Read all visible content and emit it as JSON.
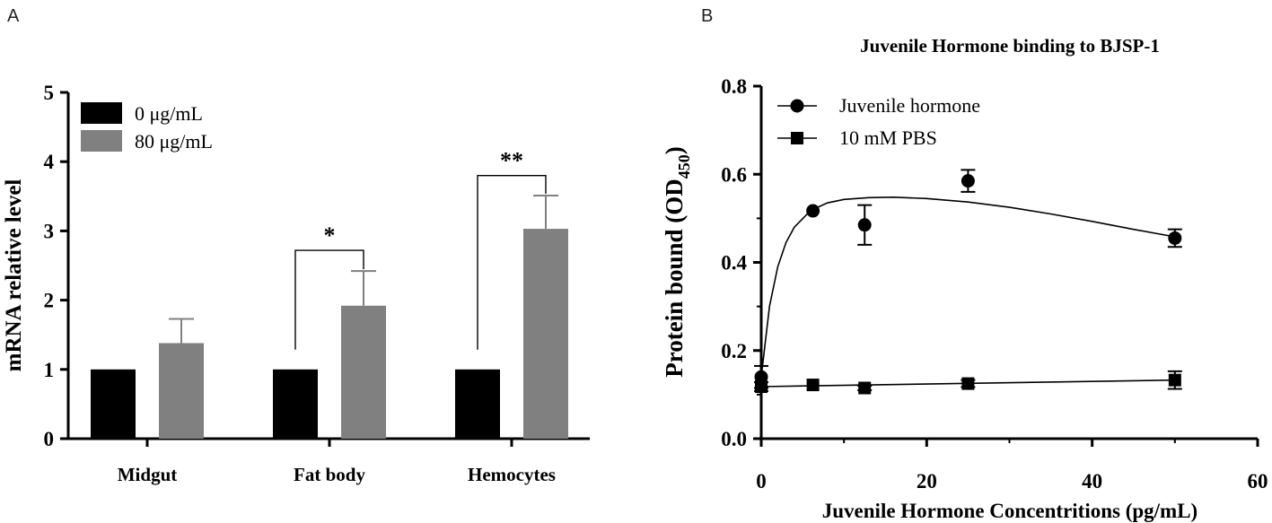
{
  "panels": {
    "a": {
      "letter": "A"
    },
    "b": {
      "letter": "B"
    }
  },
  "chart_data": [
    {
      "type": "bar",
      "title": "",
      "xlabel": "",
      "ylabel": "mRNA relative level",
      "ylim": [
        0,
        5
      ],
      "yticks": [
        "0",
        "1",
        "2",
        "3",
        "4",
        "5"
      ],
      "categories": [
        "Midgut",
        "Fat body",
        "Hemocytes"
      ],
      "series": [
        {
          "name": "0  μg/mL",
          "color": "#000000",
          "values": [
            1,
            1,
            1
          ],
          "errors": [
            0,
            0,
            0
          ]
        },
        {
          "name": "80 μg/mL",
          "color": "#808080",
          "values": [
            1.38,
            1.92,
            3.03
          ],
          "errors": [
            0.35,
            0.5,
            0.48
          ]
        }
      ],
      "significance": [
        {
          "category_index": 1,
          "label": "*",
          "bracket_y": 2.72
        },
        {
          "category_index": 2,
          "label": "**",
          "bracket_y": 3.8
        }
      ],
      "legend_position": "top-left"
    },
    {
      "type": "scatter",
      "title": "Juvenile Hormone binding to BJSP-1",
      "xlabel": "Juvenile Hormone Concentritions (pg/mL)",
      "ylabel": "Protein bound (OD",
      "ylabel_subscript": "450",
      "ylabel_suffix": ")",
      "xlim": [
        0,
        60
      ],
      "ylim": [
        0,
        0.8
      ],
      "xticks": [
        "0",
        "20",
        "40",
        "60"
      ],
      "yticks": [
        "0.0",
        "0.2",
        "0.4",
        "0.6",
        "0.8"
      ],
      "series": [
        {
          "name": "Juvenile hormone",
          "marker": "circle",
          "x": [
            0,
            6.25,
            12.5,
            25,
            50
          ],
          "y": [
            0.14,
            0.517,
            0.485,
            0.585,
            0.455
          ],
          "errors": [
            0.025,
            0,
            0.045,
            0.025,
            0.02
          ],
          "fit": [
            [
              0,
              0.14
            ],
            [
              1,
              0.3
            ],
            [
              2,
              0.39
            ],
            [
              3,
              0.445
            ],
            [
              4,
              0.48
            ],
            [
              6,
              0.518
            ],
            [
              8,
              0.535
            ],
            [
              10,
              0.543
            ],
            [
              13,
              0.547
            ],
            [
              16,
              0.548
            ],
            [
              20,
              0.545
            ],
            [
              25,
              0.537
            ],
            [
              30,
              0.525
            ],
            [
              35,
              0.51
            ],
            [
              40,
              0.493
            ],
            [
              45,
              0.475
            ],
            [
              50,
              0.458
            ]
          ]
        },
        {
          "name": "10 mM PBS",
          "marker": "square",
          "x": [
            0,
            6.25,
            12.5,
            25,
            50
          ],
          "y": [
            0.118,
            0.122,
            0.115,
            0.125,
            0.133
          ],
          "errors": [
            0.01,
            0,
            0.005,
            0.008,
            0.02
          ],
          "fit": [
            [
              0,
              0.118
            ],
            [
              50,
              0.133
            ]
          ]
        }
      ],
      "legend_position": "top-left"
    }
  ]
}
